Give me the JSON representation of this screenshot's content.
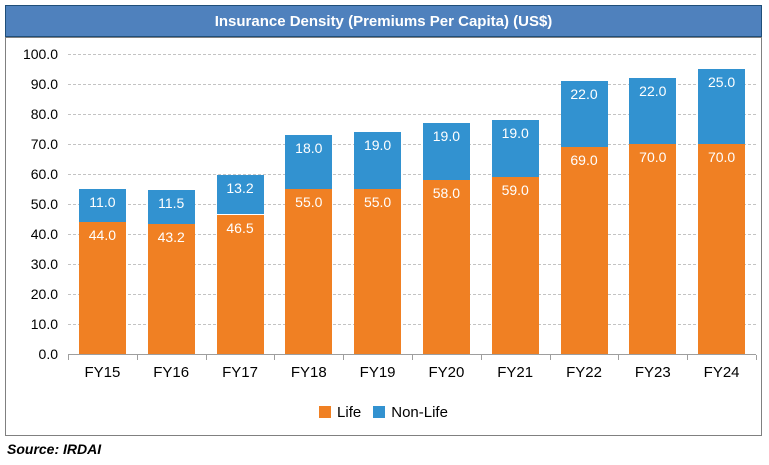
{
  "title": "Insurance Density (Premiums Per Capita) (US$)",
  "source": "Source: IRDAI",
  "colors": {
    "title_bg": "#4F81BD",
    "title_border": "#1F4E79",
    "title_text": "#FFFFFF",
    "life": "#F08023",
    "non_life": "#3292D0",
    "gridline": "#C3C3C3",
    "axis": "#9E9E9E",
    "frame_border": "#808080",
    "data_label_text": "#FFFFFF"
  },
  "legend": [
    {
      "label": "Life",
      "color": "#F08023"
    },
    {
      "label": "Non-Life",
      "color": "#3292D0"
    }
  ],
  "chart_data": {
    "type": "bar",
    "stacked": true,
    "title": "Insurance Density (Premiums Per Capita) (US$)",
    "categories": [
      "FY15",
      "FY16",
      "FY17",
      "FY18",
      "FY19",
      "FY20",
      "FY21",
      "FY22",
      "FY23",
      "FY24"
    ],
    "series": [
      {
        "name": "Life",
        "color": "#F08023",
        "values": [
          44.0,
          43.2,
          46.5,
          55.0,
          55.0,
          58.0,
          59.0,
          69.0,
          70.0,
          70.0
        ]
      },
      {
        "name": "Non-Life",
        "color": "#3292D0",
        "values": [
          11.0,
          11.5,
          13.2,
          18.0,
          19.0,
          19.0,
          19.0,
          22.0,
          22.0,
          25.0
        ]
      }
    ],
    "xlabel": "",
    "ylabel": "",
    "ylim": [
      0,
      100
    ],
    "ytick_step": 10,
    "ytick_labels": [
      "0.0",
      "10.0",
      "20.0",
      "30.0",
      "40.0",
      "50.0",
      "60.0",
      "70.0",
      "80.0",
      "90.0",
      "100.0"
    ],
    "grid": true,
    "gridline_style": "dashed",
    "legend_position": "bottom",
    "value_labels": "inside-end, one decimal"
  }
}
